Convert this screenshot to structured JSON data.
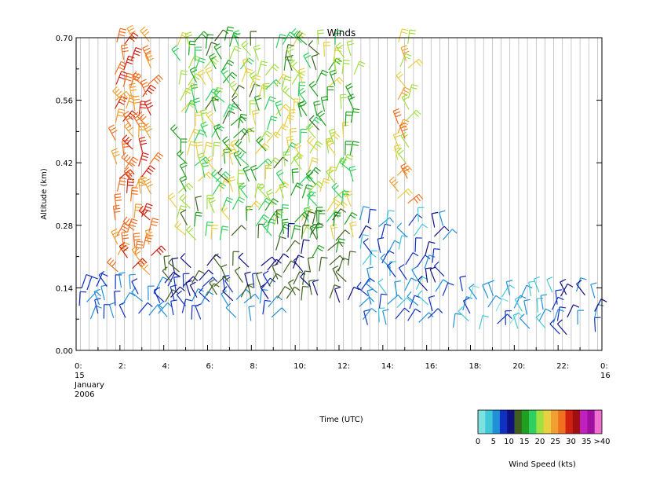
{
  "chart_data": {
    "type": "scatter",
    "subtype": "wind-barbs",
    "title": "Winds",
    "xlabel": "Time (UTC)",
    "ylabel": "Altitude (km)",
    "xlim": [
      0,
      24
    ],
    "ylim": [
      0.0,
      0.7
    ],
    "grid": "vertical lines at every sample time",
    "yticks": [
      "0.00",
      "0.14",
      "0.28",
      "0.42",
      "0.56",
      "0.70"
    ],
    "xtick_labels": [
      {
        "hour": 0,
        "text": [
          "0:",
          "15",
          "January",
          "2006"
        ]
      },
      {
        "hour": 2,
        "text": [
          "2:"
        ]
      },
      {
        "hour": 4,
        "text": [
          "4:"
        ]
      },
      {
        "hour": 6,
        "text": [
          "6:"
        ]
      },
      {
        "hour": 8,
        "text": [
          "8:"
        ]
      },
      {
        "hour": 10,
        "text": [
          "10:"
        ]
      },
      {
        "hour": 12,
        "text": [
          "12:"
        ]
      },
      {
        "hour": 14,
        "text": [
          "14:"
        ]
      },
      {
        "hour": 16,
        "text": [
          "16:"
        ]
      },
      {
        "hour": 18,
        "text": [
          "18:"
        ]
      },
      {
        "hour": 20,
        "text": [
          "20:"
        ]
      },
      {
        "hour": 22,
        "text": [
          "22:"
        ]
      },
      {
        "hour": 24,
        "text": [
          "0:",
          "16"
        ]
      }
    ],
    "colorbar": {
      "label": "Wind Speed (kts)",
      "tick_labels": [
        "0",
        "5",
        "10",
        "15",
        "20",
        "25",
        "30",
        "35",
        ">40"
      ],
      "colors": [
        "#7fe0e0",
        "#40c8d8",
        "#2090d8",
        "#1030c0",
        "#101080",
        "#406020",
        "#20a020",
        "#30d060",
        "#a0e040",
        "#e8d040",
        "#f0a030",
        "#f07020",
        "#d02010",
        "#a01010",
        "#c020c0",
        "#a010a0",
        "#f070d0"
      ]
    },
    "barb_regions": [
      {
        "t0": 0.0,
        "t1": 9.0,
        "alt0": 0.06,
        "alt1": 0.15,
        "speed_range": [
          5,
          10
        ]
      },
      {
        "t0": 3.8,
        "t1": 12.5,
        "alt0": 0.1,
        "alt1": 0.2,
        "speed_range": [
          10,
          15
        ]
      },
      {
        "t0": 1.7,
        "t1": 3.5,
        "alt0": 0.16,
        "alt1": 0.7,
        "speed_range": [
          25,
          32
        ]
      },
      {
        "t0": 4.5,
        "t1": 12.8,
        "alt0": 0.24,
        "alt1": 0.7,
        "speed_range": [
          14,
          25
        ]
      },
      {
        "t0": 9.0,
        "t1": 12.0,
        "alt0": 0.2,
        "alt1": 0.3,
        "speed_range": [
          12,
          16
        ]
      },
      {
        "t0": 12.8,
        "t1": 17.0,
        "alt0": 0.05,
        "alt1": 0.3,
        "speed_range": [
          3,
          12
        ]
      },
      {
        "t0": 14.5,
        "t1": 15.3,
        "alt0": 0.32,
        "alt1": 0.7,
        "speed_range": [
          20,
          30
        ]
      },
      {
        "t0": 17.0,
        "t1": 22.0,
        "alt0": 0.04,
        "alt1": 0.14,
        "speed_range": [
          2,
          8
        ]
      },
      {
        "t0": 21.8,
        "t1": 24.0,
        "alt0": 0.02,
        "alt1": 0.14,
        "speed_range": [
          6,
          12
        ]
      }
    ]
  }
}
